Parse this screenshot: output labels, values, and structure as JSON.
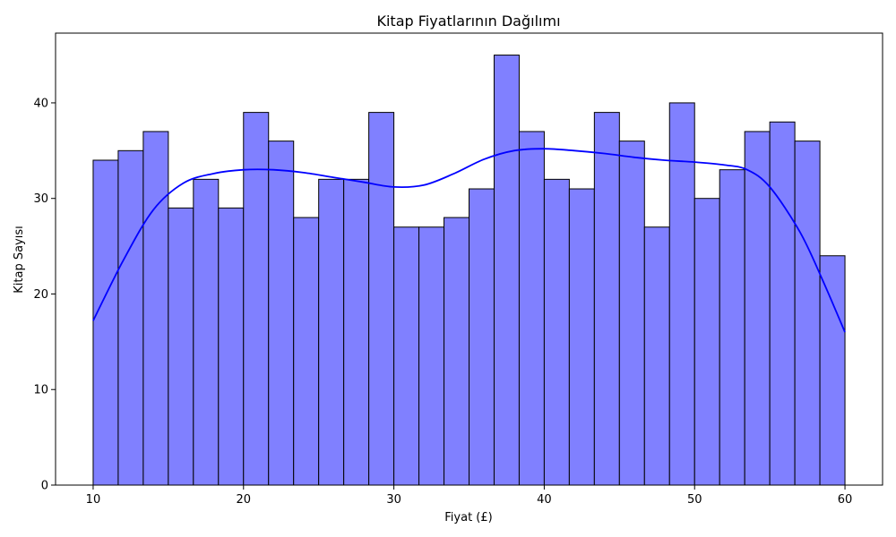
{
  "chart_data": {
    "type": "bar",
    "title": "Kitap Fiyatlarının Dağılımı",
    "xlabel": "Fiyat (£)",
    "ylabel": "Kitap Sayısı",
    "bin_start": 10,
    "bin_end": 60,
    "values": [
      34,
      35,
      37,
      29,
      32,
      29,
      39,
      36,
      28,
      32,
      32,
      39,
      27,
      27,
      28,
      31,
      45,
      37,
      32,
      31,
      39,
      36,
      27,
      40,
      30,
      33,
      37,
      38,
      36,
      24
    ],
    "kde": {
      "x": [
        10,
        12,
        14,
        16,
        18,
        20,
        22,
        24,
        26,
        28,
        30,
        32,
        34,
        36,
        38,
        40,
        42,
        44,
        46,
        48,
        50,
        52,
        53.5,
        55,
        57,
        58.5,
        60
      ],
      "y": [
        17.2,
        23.5,
        28.8,
        31.6,
        32.6,
        33.0,
        33.0,
        32.7,
        32.2,
        31.7,
        31.2,
        31.4,
        32.6,
        34.1,
        35.0,
        35.2,
        35.0,
        34.7,
        34.3,
        34.0,
        33.8,
        33.5,
        33.0,
        31.2,
        26.5,
        21.5,
        16.0
      ]
    },
    "xlim": [
      7.5,
      62.5
    ],
    "ylim": [
      0,
      47.3
    ],
    "xticks": [
      10,
      20,
      30,
      40,
      50,
      60
    ],
    "yticks": [
      0,
      10,
      20,
      30,
      40
    ],
    "bar_color": "#8080ff",
    "bar_edge_color": "#000000",
    "kde_color": "#0000ff",
    "grid": false,
    "legend": "none"
  }
}
